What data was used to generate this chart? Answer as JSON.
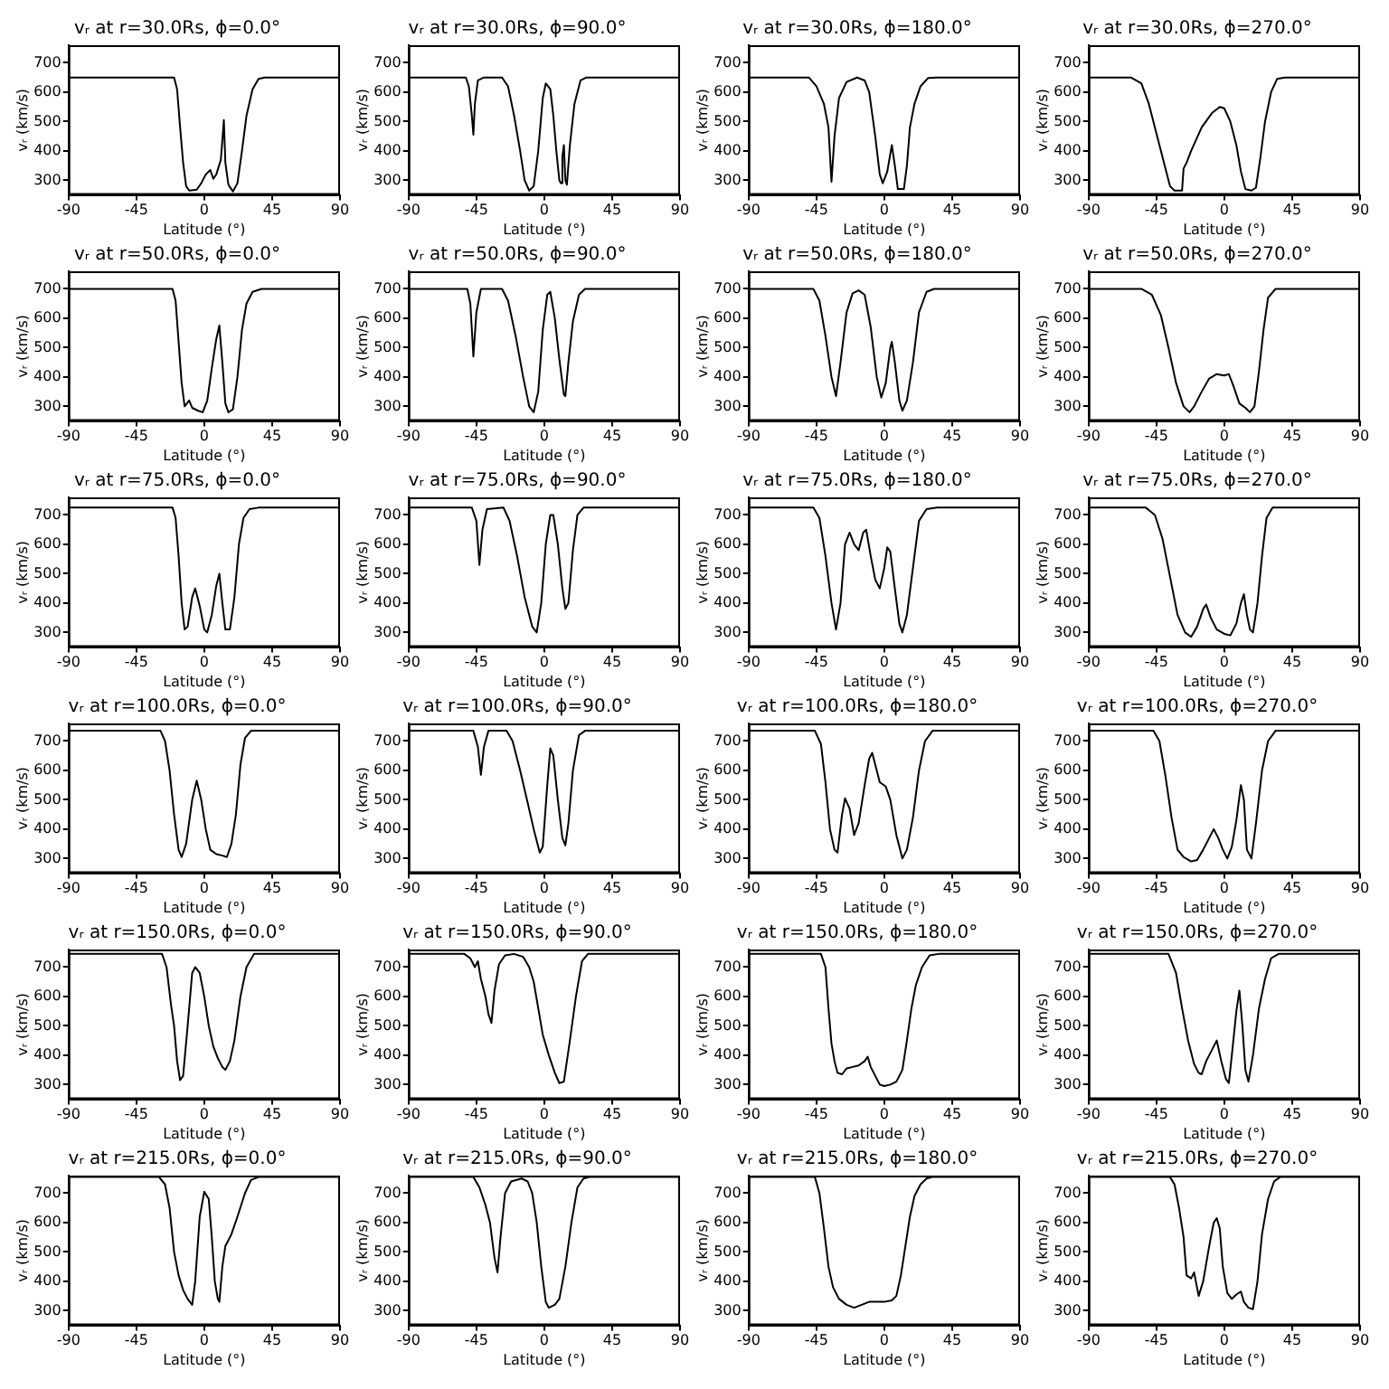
{
  "chart_data": [
    {
      "type": "line",
      "title": "vᵣ at r=30.0Rs, ϕ=0.0°",
      "xlabel": "Latitude (°)",
      "ylabel": "vᵣ (km/s)",
      "color": "#000000",
      "xlim": [
        -90,
        90
      ],
      "xticks": [
        -90,
        -45,
        0,
        45,
        90
      ],
      "ylim": [
        250,
        760
      ],
      "yticks": [
        300,
        400,
        500,
        600,
        700
      ],
      "x": [
        -90,
        -20,
        -18,
        -16,
        -14,
        -12,
        -10,
        -5,
        -2,
        1,
        4,
        6,
        8,
        11,
        13,
        14,
        16,
        19,
        22,
        25,
        28,
        32,
        36,
        40,
        90
      ],
      "values": [
        650,
        650,
        610,
        480,
        360,
        280,
        265,
        268,
        290,
        320,
        335,
        305,
        320,
        370,
        505,
        360,
        285,
        262,
        290,
        400,
        520,
        610,
        645,
        650,
        650
      ]
    },
    {
      "type": "line",
      "title": "vᵣ at r=30.0Rs, ϕ=90.0°",
      "xlabel": "Latitude (°)",
      "ylabel": "vᵣ (km/s)",
      "color": "#000000",
      "xlim": [
        -90,
        90
      ],
      "xticks": [
        -90,
        -45,
        0,
        45,
        90
      ],
      "ylim": [
        250,
        760
      ],
      "yticks": [
        300,
        400,
        500,
        600,
        700
      ],
      "x": [
        -90,
        -52,
        -50,
        -48,
        -47,
        -46,
        -44,
        -40,
        -28,
        -24,
        -20,
        -16,
        -13,
        -10,
        -7,
        -4,
        -1,
        1,
        4,
        6,
        8,
        10,
        11,
        12,
        13,
        14,
        15,
        17,
        20,
        24,
        28,
        90
      ],
      "values": [
        650,
        650,
        620,
        520,
        455,
        560,
        640,
        650,
        650,
        620,
        520,
        400,
        300,
        265,
        280,
        400,
        580,
        630,
        610,
        520,
        400,
        300,
        290,
        380,
        420,
        300,
        285,
        420,
        560,
        640,
        650,
        650
      ]
    },
    {
      "type": "line",
      "title": "vᵣ at r=30.0Rs, ϕ=180.0°",
      "xlabel": "Latitude (°)",
      "ylabel": "vᵣ (km/s)",
      "color": "#000000",
      "xlim": [
        -90,
        90
      ],
      "xticks": [
        -90,
        -45,
        0,
        45,
        90
      ],
      "ylim": [
        250,
        760
      ],
      "yticks": [
        300,
        400,
        500,
        600,
        700
      ],
      "x": [
        -90,
        -50,
        -45,
        -40,
        -37,
        -35,
        -33,
        -30,
        -25,
        -18,
        -13,
        -10,
        -6,
        -3,
        -1,
        2,
        5,
        7,
        9,
        13,
        15,
        17,
        20,
        24,
        29,
        35,
        90
      ],
      "values": [
        650,
        650,
        620,
        560,
        480,
        295,
        450,
        580,
        635,
        650,
        640,
        600,
        450,
        320,
        290,
        330,
        420,
        350,
        270,
        270,
        350,
        480,
        560,
        620,
        648,
        650,
        650
      ]
    },
    {
      "type": "line",
      "title": "vᵣ at r=30.0Rs, ϕ=270.0°",
      "xlabel": "Latitude (°)",
      "ylabel": "vᵣ (km/s)",
      "color": "#000000",
      "xlim": [
        -90,
        90
      ],
      "xticks": [
        -90,
        -45,
        0,
        45,
        90
      ],
      "ylim": [
        250,
        760
      ],
      "yticks": [
        300,
        400,
        500,
        600,
        700
      ],
      "x": [
        -90,
        -62,
        -55,
        -50,
        -45,
        -40,
        -36,
        -33,
        -28,
        -27,
        -25,
        -22,
        -15,
        -8,
        -3,
        0,
        4,
        8,
        11,
        14,
        18,
        21,
        24,
        27,
        31,
        35,
        40,
        90
      ],
      "values": [
        650,
        650,
        630,
        560,
        460,
        360,
        280,
        265,
        265,
        340,
        360,
        400,
        480,
        530,
        550,
        545,
        500,
        420,
        330,
        270,
        265,
        275,
        380,
        500,
        600,
        645,
        650,
        650
      ]
    },
    {
      "type": "line",
      "title": "vᵣ at r=50.0Rs, ϕ=0.0°",
      "xlabel": "Latitude (°)",
      "ylabel": "vᵣ (km/s)",
      "color": "#000000",
      "xlim": [
        -90,
        90
      ],
      "xticks": [
        -90,
        -45,
        0,
        45,
        90
      ],
      "ylim": [
        250,
        760
      ],
      "yticks": [
        300,
        400,
        500,
        600,
        700
      ],
      "x": [
        -90,
        -21,
        -19,
        -17,
        -15,
        -13,
        -10,
        -8,
        -4,
        -1,
        2,
        5,
        8,
        10,
        12,
        14,
        16,
        19,
        22,
        25,
        28,
        32,
        38,
        90
      ],
      "values": [
        700,
        700,
        660,
        520,
        380,
        300,
        320,
        295,
        285,
        280,
        320,
        430,
        530,
        575,
        450,
        310,
        280,
        290,
        400,
        560,
        650,
        690,
        700,
        700
      ]
    },
    {
      "type": "line",
      "title": "vᵣ at r=50.0Rs, ϕ=90.0°",
      "xlabel": "Latitude (°)",
      "ylabel": "vᵣ (km/s)",
      "color": "#000000",
      "xlim": [
        -90,
        90
      ],
      "xticks": [
        -90,
        -45,
        0,
        45,
        90
      ],
      "ylim": [
        250,
        760
      ],
      "yticks": [
        300,
        400,
        500,
        600,
        700
      ],
      "x": [
        -90,
        -51,
        -49,
        -47,
        -45,
        -42,
        -28,
        -24,
        -19,
        -14,
        -10,
        -7,
        -4,
        -1,
        2,
        4,
        7,
        10,
        13,
        14,
        16,
        19,
        23,
        27,
        90
      ],
      "values": [
        700,
        700,
        650,
        470,
        620,
        700,
        700,
        660,
        540,
        400,
        300,
        280,
        350,
        560,
        680,
        690,
        600,
        460,
        340,
        335,
        450,
        590,
        680,
        700,
        700
      ]
    },
    {
      "type": "line",
      "title": "vᵣ at r=50.0Rs, ϕ=180.0°",
      "xlabel": "Latitude (°)",
      "ylabel": "vᵣ (km/s)",
      "color": "#000000",
      "xlim": [
        -90,
        90
      ],
      "xticks": [
        -90,
        -45,
        0,
        45,
        90
      ],
      "ylim": [
        250,
        760
      ],
      "yticks": [
        300,
        400,
        500,
        600,
        700
      ],
      "x": [
        -90,
        -47,
        -43,
        -39,
        -35,
        -32,
        -29,
        -25,
        -21,
        -17,
        -13,
        -9,
        -5,
        -2,
        1,
        4,
        5,
        7,
        10,
        12,
        15,
        19,
        23,
        28,
        33,
        90
      ],
      "values": [
        700,
        700,
        660,
        540,
        400,
        335,
        450,
        620,
        685,
        695,
        680,
        570,
        400,
        330,
        380,
        500,
        520,
        450,
        320,
        285,
        320,
        450,
        620,
        690,
        700,
        700
      ]
    },
    {
      "type": "line",
      "title": "vᵣ at r=50.0Rs, ϕ=270.0°",
      "xlabel": "Latitude (°)",
      "ylabel": "vᵣ (km/s)",
      "color": "#000000",
      "xlim": [
        -90,
        90
      ],
      "xticks": [
        -90,
        -45,
        0,
        45,
        90
      ],
      "ylim": [
        250,
        760
      ],
      "yticks": [
        300,
        400,
        500,
        600,
        700
      ],
      "x": [
        -90,
        -55,
        -48,
        -42,
        -37,
        -32,
        -27,
        -23,
        -20,
        -15,
        -10,
        -5,
        0,
        3,
        6,
        10,
        14,
        17,
        20,
        23,
        26,
        29,
        34,
        90
      ],
      "values": [
        700,
        700,
        680,
        610,
        500,
        380,
        300,
        280,
        300,
        350,
        395,
        410,
        405,
        410,
        370,
        310,
        295,
        280,
        300,
        420,
        560,
        670,
        700,
        700
      ]
    },
    {
      "type": "line",
      "title": "vᵣ at r=75.0Rs, ϕ=0.0°",
      "xlabel": "Latitude (°)",
      "ylabel": "vᵣ (km/s)",
      "color": "#000000",
      "xlim": [
        -90,
        90
      ],
      "xticks": [
        -90,
        -45,
        0,
        45,
        90
      ],
      "ylim": [
        250,
        760
      ],
      "yticks": [
        300,
        400,
        500,
        600,
        700
      ],
      "x": [
        -90,
        -21,
        -19,
        -17,
        -15,
        -13,
        -11,
        -8,
        -6,
        -3,
        0,
        2,
        5,
        8,
        10,
        12,
        14,
        17,
        20,
        23,
        26,
        30,
        36,
        90
      ],
      "values": [
        725,
        725,
        690,
        560,
        400,
        310,
        320,
        420,
        450,
        390,
        310,
        300,
        360,
        460,
        500,
        400,
        310,
        310,
        420,
        600,
        690,
        720,
        725,
        725
      ]
    },
    {
      "type": "line",
      "title": "vᵣ at r=75.0Rs, ϕ=90.0°",
      "xlabel": "Latitude (°)",
      "ylabel": "vᵣ (km/s)",
      "color": "#000000",
      "xlim": [
        -90,
        90
      ],
      "xticks": [
        -90,
        -45,
        0,
        45,
        90
      ],
      "ylim": [
        250,
        760
      ],
      "yticks": [
        300,
        400,
        500,
        600,
        700
      ],
      "x": [
        -90,
        -48,
        -45,
        -43,
        -41,
        -38,
        -27,
        -23,
        -18,
        -13,
        -8,
        -5,
        -2,
        1,
        4,
        6,
        9,
        12,
        14,
        16,
        19,
        22,
        26,
        90
      ],
      "values": [
        725,
        725,
        680,
        530,
        650,
        720,
        725,
        680,
        560,
        420,
        320,
        300,
        400,
        600,
        700,
        700,
        600,
        450,
        380,
        400,
        580,
        700,
        725,
        725
      ]
    },
    {
      "type": "line",
      "title": "vᵣ at r=75.0Rs, ϕ=180.0°",
      "xlabel": "Latitude (°)",
      "ylabel": "vᵣ (km/s)",
      "color": "#000000",
      "xlim": [
        -90,
        90
      ],
      "xticks": [
        -90,
        -45,
        0,
        45,
        90
      ],
      "ylim": [
        250,
        760
      ],
      "yticks": [
        300,
        400,
        500,
        600,
        700
      ],
      "x": [
        -90,
        -47,
        -43,
        -39,
        -35,
        -32,
        -29,
        -26,
        -23,
        -20,
        -17,
        -14,
        -12,
        -9,
        -6,
        -3,
        0,
        2,
        4,
        7,
        10,
        12,
        15,
        19,
        23,
        28,
        35,
        90
      ],
      "values": [
        725,
        725,
        690,
        560,
        400,
        310,
        400,
        600,
        640,
        600,
        580,
        640,
        650,
        560,
        480,
        450,
        520,
        590,
        575,
        450,
        330,
        300,
        360,
        520,
        680,
        720,
        725,
        725
      ]
    },
    {
      "type": "line",
      "title": "vᵣ at r=75.0Rs, ϕ=270.0°",
      "xlabel": "Latitude (°)",
      "ylabel": "vᵣ (km/s)",
      "color": "#000000",
      "xlim": [
        -90,
        90
      ],
      "xticks": [
        -90,
        -45,
        0,
        45,
        90
      ],
      "ylim": [
        250,
        760
      ],
      "yticks": [
        300,
        400,
        500,
        600,
        700
      ],
      "x": [
        -90,
        -52,
        -46,
        -41,
        -36,
        -31,
        -26,
        -22,
        -18,
        -14,
        -12,
        -9,
        -5,
        0,
        4,
        8,
        11,
        13,
        15,
        17,
        19,
        22,
        25,
        28,
        32,
        90
      ],
      "values": [
        725,
        725,
        700,
        620,
        490,
        360,
        300,
        285,
        320,
        380,
        395,
        350,
        310,
        295,
        290,
        330,
        400,
        430,
        360,
        310,
        300,
        400,
        560,
        690,
        725,
        725
      ]
    },
    {
      "type": "line",
      "title": "vᵣ at r=100.0Rs, ϕ=0.0°",
      "xlabel": "Latitude (°)",
      "ylabel": "vᵣ (km/s)",
      "color": "#000000",
      "xlim": [
        -90,
        90
      ],
      "xticks": [
        -90,
        -45,
        0,
        45,
        90
      ],
      "ylim": [
        250,
        760
      ],
      "yticks": [
        300,
        400,
        500,
        600,
        700
      ],
      "x": [
        -90,
        -29,
        -26,
        -23,
        -20,
        -17,
        -15,
        -12,
        -8,
        -5,
        -2,
        1,
        4,
        8,
        12,
        15,
        18,
        21,
        24,
        27,
        31,
        90
      ],
      "values": [
        735,
        735,
        700,
        600,
        450,
        330,
        305,
        350,
        500,
        565,
        500,
        400,
        330,
        315,
        310,
        305,
        350,
        450,
        620,
        710,
        735,
        735
      ]
    },
    {
      "type": "line",
      "title": "vᵣ at r=100.0Rs, ϕ=90.0°",
      "xlabel": "Latitude (°)",
      "ylabel": "vᵣ (km/s)",
      "color": "#000000",
      "xlim": [
        -90,
        90
      ],
      "xticks": [
        -90,
        -45,
        0,
        45,
        90
      ],
      "ylim": [
        250,
        760
      ],
      "yticks": [
        300,
        400,
        500,
        600,
        700
      ],
      "x": [
        -90,
        -47,
        -44,
        -42,
        -40,
        -37,
        -25,
        -21,
        -16,
        -11,
        -7,
        -3,
        -1,
        2,
        4,
        6,
        9,
        12,
        14,
        16,
        19,
        23,
        27,
        90
      ],
      "values": [
        735,
        735,
        680,
        585,
        680,
        735,
        735,
        700,
        600,
        490,
        400,
        320,
        340,
        550,
        675,
        650,
        500,
        370,
        345,
        420,
        600,
        720,
        735,
        735
      ]
    },
    {
      "type": "line",
      "title": "vᵣ at r=100.0Rs, ϕ=180.0°",
      "xlabel": "Latitude (°)",
      "ylabel": "vᵣ (km/s)",
      "color": "#000000",
      "xlim": [
        -90,
        90
      ],
      "xticks": [
        -90,
        -45,
        0,
        45,
        90
      ],
      "ylim": [
        250,
        760
      ],
      "yticks": [
        300,
        400,
        500,
        600,
        700
      ],
      "x": [
        -90,
        -46,
        -42,
        -39,
        -36,
        -33,
        -31,
        -28,
        -26,
        -23,
        -20,
        -17,
        -13,
        -10,
        -8,
        -6,
        -3,
        1,
        4,
        8,
        12,
        15,
        19,
        23,
        27,
        32,
        90
      ],
      "values": [
        735,
        735,
        690,
        560,
        400,
        330,
        320,
        450,
        505,
        470,
        380,
        420,
        550,
        640,
        660,
        620,
        560,
        545,
        500,
        380,
        300,
        330,
        440,
        600,
        700,
        735,
        735
      ]
    },
    {
      "type": "line",
      "title": "vᵣ at r=100.0Rs, ϕ=270.0°",
      "xlabel": "Latitude (°)",
      "ylabel": "vᵣ (km/s)",
      "color": "#000000",
      "xlim": [
        -90,
        90
      ],
      "xticks": [
        -90,
        -45,
        0,
        45,
        90
      ],
      "ylim": [
        250,
        760
      ],
      "yticks": [
        300,
        400,
        500,
        600,
        700
      ],
      "x": [
        -90,
        -47,
        -43,
        -39,
        -35,
        -31,
        -27,
        -22,
        -18,
        -14,
        -10,
        -7,
        -4,
        -1,
        2,
        5,
        8,
        11,
        13,
        15,
        18,
        21,
        25,
        29,
        34,
        90
      ],
      "values": [
        735,
        735,
        700,
        580,
        440,
        330,
        305,
        290,
        295,
        330,
        370,
        400,
        370,
        330,
        300,
        340,
        430,
        550,
        500,
        330,
        300,
        420,
        600,
        700,
        735,
        735
      ]
    },
    {
      "type": "line",
      "title": "vᵣ at r=150.0Rs, ϕ=0.0°",
      "xlabel": "Latitude (°)",
      "ylabel": "vᵣ (km/s)",
      "color": "#000000",
      "xlim": [
        -90,
        90
      ],
      "xticks": [
        -90,
        -45,
        0,
        45,
        90
      ],
      "ylim": [
        250,
        760
      ],
      "yticks": [
        300,
        400,
        500,
        600,
        700
      ],
      "x": [
        -90,
        -28,
        -25,
        -22,
        -20,
        -18,
        -16,
        -14,
        -11,
        -8,
        -6,
        -3,
        0,
        3,
        6,
        9,
        12,
        14,
        17,
        20,
        24,
        28,
        33,
        90
      ],
      "values": [
        745,
        745,
        700,
        570,
        500,
        380,
        315,
        330,
        500,
        680,
        700,
        680,
        600,
        500,
        430,
        390,
        360,
        350,
        380,
        450,
        600,
        700,
        745,
        745
      ]
    },
    {
      "type": "line",
      "title": "vᵣ at r=150.0Rs, ϕ=90.0°",
      "xlabel": "Latitude (°)",
      "ylabel": "vᵣ (km/s)",
      "color": "#000000",
      "xlim": [
        -90,
        90
      ],
      "xticks": [
        -90,
        -45,
        0,
        45,
        90
      ],
      "ylim": [
        250,
        760
      ],
      "yticks": [
        300,
        400,
        500,
        600,
        700
      ],
      "x": [
        -90,
        -53,
        -49,
        -46,
        -44,
        -42,
        -39,
        -37,
        -35,
        -33,
        -30,
        -26,
        -20,
        -14,
        -10,
        -7,
        -4,
        -1,
        3,
        7,
        10,
        13,
        17,
        21,
        25,
        29,
        90
      ],
      "values": [
        745,
        745,
        730,
        700,
        720,
        660,
        600,
        540,
        510,
        620,
        710,
        740,
        745,
        735,
        700,
        650,
        560,
        470,
        400,
        340,
        305,
        310,
        450,
        600,
        720,
        745,
        745
      ]
    },
    {
      "type": "line",
      "title": "vᵣ at r=150.0Rs, ϕ=180.0°",
      "xlabel": "Latitude (°)",
      "ylabel": "vᵣ (km/s)",
      "color": "#000000",
      "xlim": [
        -90,
        90
      ],
      "xticks": [
        -90,
        -45,
        0,
        45,
        90
      ],
      "ylim": [
        250,
        760
      ],
      "yticks": [
        300,
        400,
        500,
        600,
        700
      ],
      "x": [
        -90,
        -42,
        -39,
        -37,
        -35,
        -33,
        -31,
        -28,
        -25,
        -21,
        -17,
        -13,
        -11,
        -9,
        -6,
        -3,
        0,
        4,
        8,
        12,
        15,
        18,
        21,
        25,
        30,
        36,
        90
      ],
      "values": [
        745,
        745,
        700,
        560,
        440,
        380,
        340,
        335,
        355,
        360,
        365,
        380,
        395,
        360,
        330,
        300,
        295,
        300,
        310,
        350,
        450,
        560,
        640,
        700,
        740,
        745,
        745
      ]
    },
    {
      "type": "line",
      "title": "vᵣ at r=150.0Rs, ϕ=270.0°",
      "xlabel": "Latitude (°)",
      "ylabel": "vᵣ (km/s)",
      "color": "#000000",
      "xlim": [
        -90,
        90
      ],
      "xticks": [
        -90,
        -45,
        0,
        45,
        90
      ],
      "ylim": [
        250,
        760
      ],
      "yticks": [
        300,
        400,
        500,
        600,
        700
      ],
      "x": [
        -90,
        -37,
        -32,
        -28,
        -24,
        -20,
        -17,
        -15,
        -12,
        -8,
        -5,
        -2,
        1,
        3,
        5,
        8,
        10,
        12,
        14,
        16,
        19,
        23,
        27,
        31,
        36,
        90
      ],
      "values": [
        745,
        745,
        680,
        560,
        450,
        370,
        340,
        335,
        380,
        420,
        450,
        380,
        320,
        305,
        400,
        550,
        620,
        500,
        350,
        310,
        400,
        560,
        660,
        730,
        745,
        745
      ]
    },
    {
      "type": "line",
      "title": "vᵣ at r=215.0Rs, ϕ=0.0°",
      "xlabel": "Latitude (°)",
      "ylabel": "vᵣ (km/s)",
      "color": "#000000",
      "xlim": [
        -90,
        90
      ],
      "xticks": [
        -90,
        -45,
        0,
        45,
        90
      ],
      "ylim": [
        250,
        760
      ],
      "yticks": [
        300,
        400,
        500,
        600,
        700
      ],
      "x": [
        -90,
        -30,
        -26,
        -23,
        -20,
        -17,
        -14,
        -11,
        -8,
        -6,
        -3,
        0,
        3,
        5,
        7,
        9,
        10,
        12,
        14,
        18,
        22,
        27,
        31,
        36,
        90
      ],
      "values": [
        755,
        755,
        730,
        650,
        500,
        420,
        370,
        340,
        320,
        400,
        620,
        705,
        680,
        550,
        400,
        340,
        330,
        450,
        520,
        560,
        620,
        700,
        745,
        755,
        755
      ]
    },
    {
      "type": "line",
      "title": "vᵣ at r=215.0Rs, ϕ=90.0°",
      "xlabel": "Latitude (°)",
      "ylabel": "vᵣ (km/s)",
      "color": "#000000",
      "xlim": [
        -90,
        90
      ],
      "xticks": [
        -90,
        -45,
        0,
        45,
        90
      ],
      "ylim": [
        250,
        760
      ],
      "yticks": [
        300,
        400,
        500,
        600,
        700
      ],
      "x": [
        -90,
        -47,
        -43,
        -39,
        -36,
        -33,
        -31,
        -29,
        -26,
        -22,
        -15,
        -11,
        -8,
        -5,
        -2,
        1,
        3,
        7,
        10,
        14,
        18,
        22,
        26,
        30,
        90
      ],
      "values": [
        755,
        755,
        720,
        660,
        600,
        480,
        430,
        550,
        700,
        740,
        750,
        740,
        700,
        600,
        450,
        330,
        310,
        320,
        340,
        450,
        600,
        720,
        750,
        755,
        755
      ]
    },
    {
      "type": "line",
      "title": "vᵣ at r=215.0Rs, ϕ=180.0°",
      "xlabel": "Latitude (°)",
      "ylabel": "vᵣ (km/s)",
      "color": "#000000",
      "xlim": [
        -90,
        90
      ],
      "xticks": [
        -90,
        -45,
        0,
        45,
        90
      ],
      "ylim": [
        250,
        760
      ],
      "yticks": [
        300,
        400,
        500,
        600,
        700
      ],
      "x": [
        -90,
        -46,
        -43,
        -40,
        -37,
        -34,
        -30,
        -25,
        -20,
        -15,
        -10,
        -5,
        0,
        5,
        8,
        11,
        14,
        17,
        20,
        24,
        28,
        32,
        90
      ],
      "values": [
        755,
        755,
        700,
        580,
        450,
        380,
        340,
        320,
        310,
        320,
        330,
        330,
        330,
        335,
        350,
        420,
        520,
        620,
        690,
        730,
        750,
        755,
        755
      ]
    },
    {
      "type": "line",
      "title": "vᵣ at r=215.0Rs, ϕ=270.0°",
      "xlabel": "Latitude (°)",
      "ylabel": "vᵣ (km/s)",
      "color": "#000000",
      "xlim": [
        -90,
        90
      ],
      "xticks": [
        -90,
        -45,
        0,
        45,
        90
      ],
      "ylim": [
        250,
        760
      ],
      "yticks": [
        300,
        400,
        500,
        600,
        700
      ],
      "x": [
        -90,
        -36,
        -33,
        -30,
        -27,
        -25,
        -22,
        -20,
        -17,
        -14,
        -10,
        -7,
        -5,
        -3,
        -1,
        2,
        5,
        8,
        11,
        13,
        16,
        19,
        22,
        25,
        29,
        33,
        37,
        90
      ],
      "values": [
        755,
        755,
        730,
        650,
        550,
        420,
        410,
        430,
        350,
        400,
        520,
        600,
        615,
        580,
        450,
        360,
        340,
        355,
        365,
        330,
        310,
        305,
        400,
        560,
        680,
        740,
        755,
        755
      ]
    }
  ]
}
